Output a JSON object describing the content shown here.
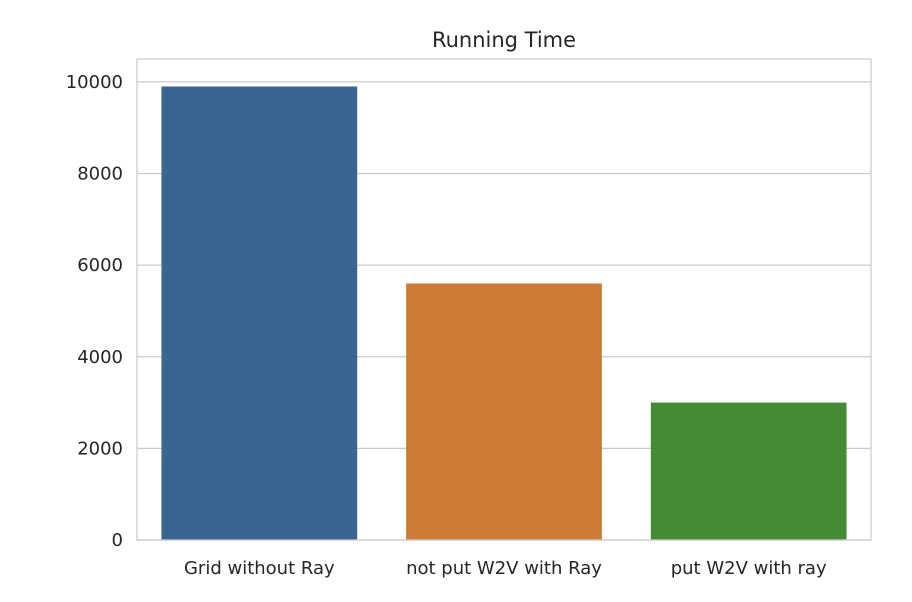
{
  "chart_data": {
    "type": "bar",
    "title": "Running Time",
    "xlabel": "",
    "ylabel": "",
    "categories": [
      "Grid without Ray",
      "not put W2V with Ray",
      "put W2V with ray"
    ],
    "values": [
      9900,
      5600,
      3000
    ],
    "colors": [
      "#3a6591",
      "#cc7a34",
      "#458a35"
    ],
    "ylim": [
      0,
      10500
    ],
    "yticks": [
      0,
      2000,
      4000,
      6000,
      8000,
      10000
    ],
    "grid": "horizontal",
    "legend": "none"
  }
}
